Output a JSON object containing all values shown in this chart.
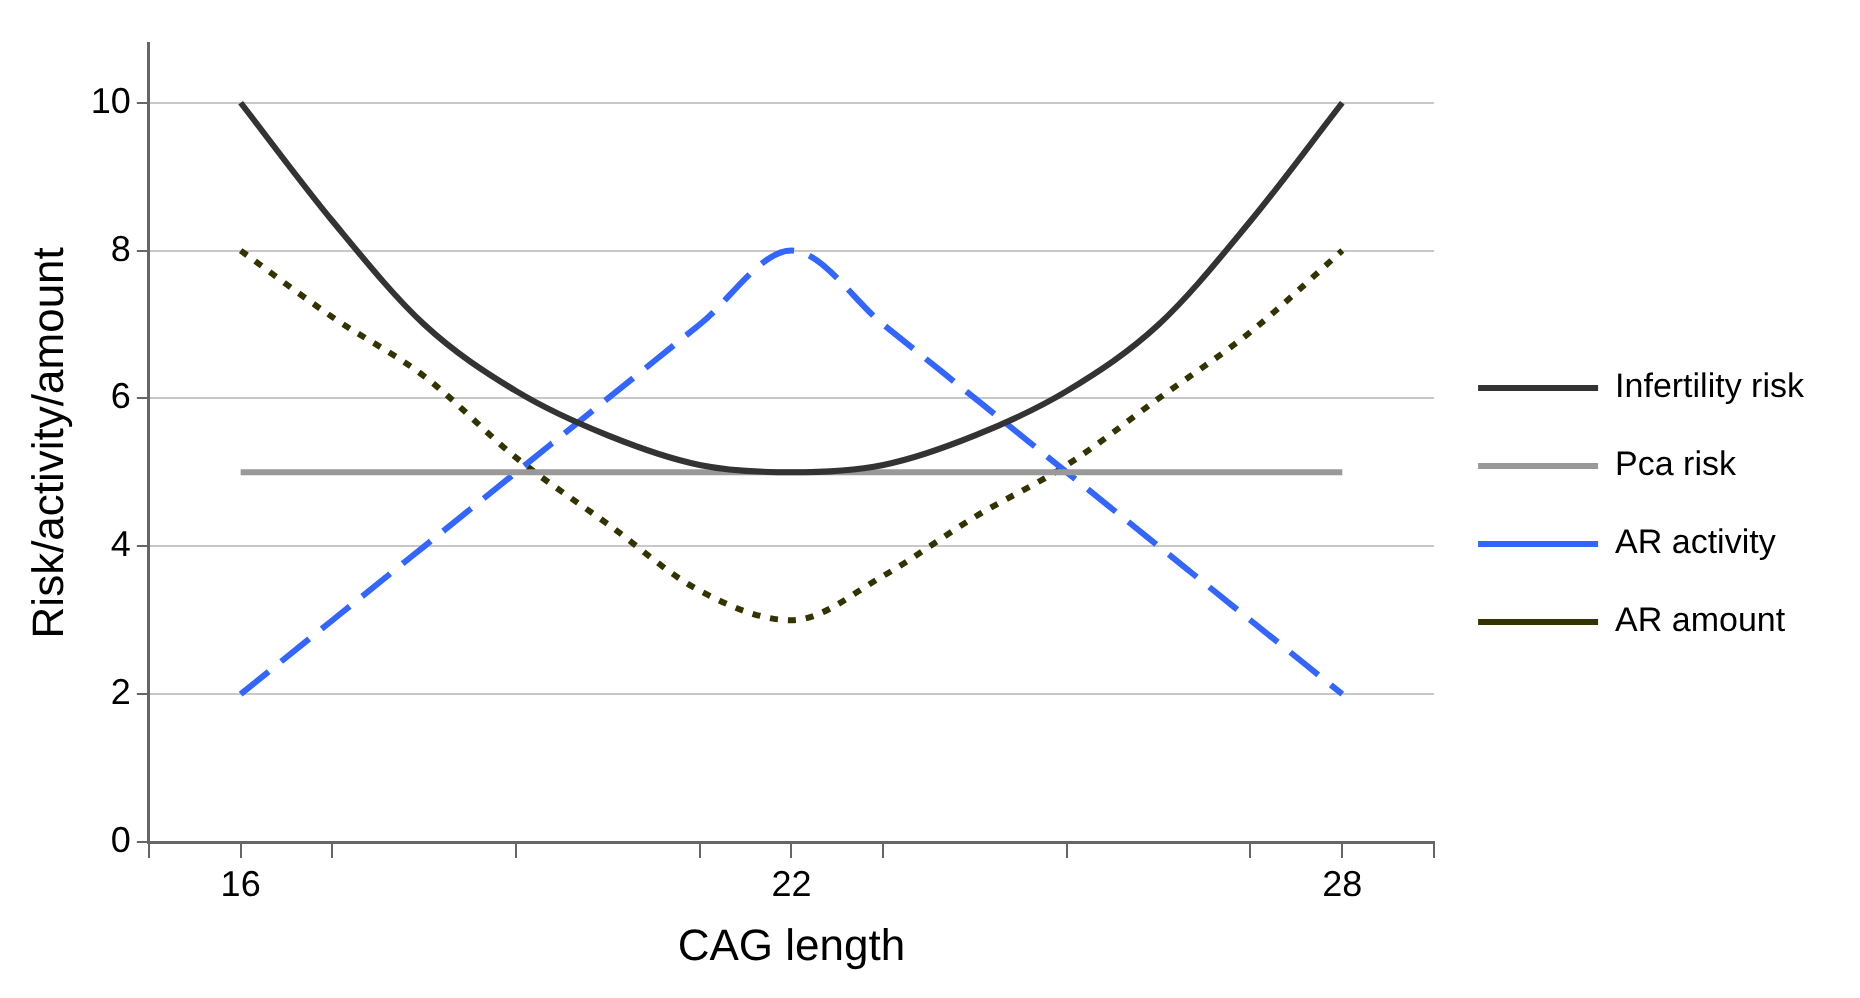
{
  "chart_data": {
    "type": "line",
    "xlabel": "CAG length",
    "ylabel": "Risk/activity/amount",
    "x": [
      16,
      17,
      18,
      19,
      20,
      21,
      22,
      23,
      24,
      25,
      26,
      27,
      28
    ],
    "series": [
      {
        "name": "Infertility risk",
        "color": "#333333",
        "line_style": "solid",
        "values": [
          10,
          8.4,
          7,
          6.1,
          5.5,
          5.1,
          5,
          5.1,
          5.5,
          6.1,
          7,
          8.4,
          10
        ]
      },
      {
        "name": "Pca risk",
        "color": "#999999",
        "line_style": "solid",
        "values": [
          5,
          5,
          5,
          5,
          5,
          5,
          5,
          5,
          5,
          5,
          5,
          5,
          5
        ]
      },
      {
        "name": "AR activity",
        "color": "#3366ff",
        "line_style": "dashed",
        "values": [
          2,
          3,
          4,
          5,
          6,
          7,
          8,
          7,
          6,
          5,
          4,
          3,
          2
        ]
      },
      {
        "name": "AR amount",
        "color": "#333300",
        "line_style": "dotted",
        "values": [
          8,
          7.1,
          6.3,
          5.2,
          4.3,
          3.4,
          3,
          3.6,
          4.4,
          5.1,
          6,
          6.9,
          8
        ]
      }
    ],
    "xlim": [
      15,
      29
    ],
    "xticks": [
      {
        "value": 15,
        "label": null
      },
      16,
      {
        "value": 17,
        "label": null
      },
      {
        "value": 19,
        "label": null
      },
      {
        "value": 21,
        "label": null
      },
      22,
      {
        "value": 23,
        "label": null
      },
      {
        "value": 25,
        "label": null
      },
      {
        "value": 27,
        "label": null
      },
      28,
      {
        "value": 29,
        "label": null
      }
    ],
    "ylim": [
      0,
      10.8
    ],
    "yticks": [
      0,
      2,
      4,
      6,
      8,
      10
    ],
    "grid": "y",
    "legend": "right",
    "marker": "none"
  }
}
